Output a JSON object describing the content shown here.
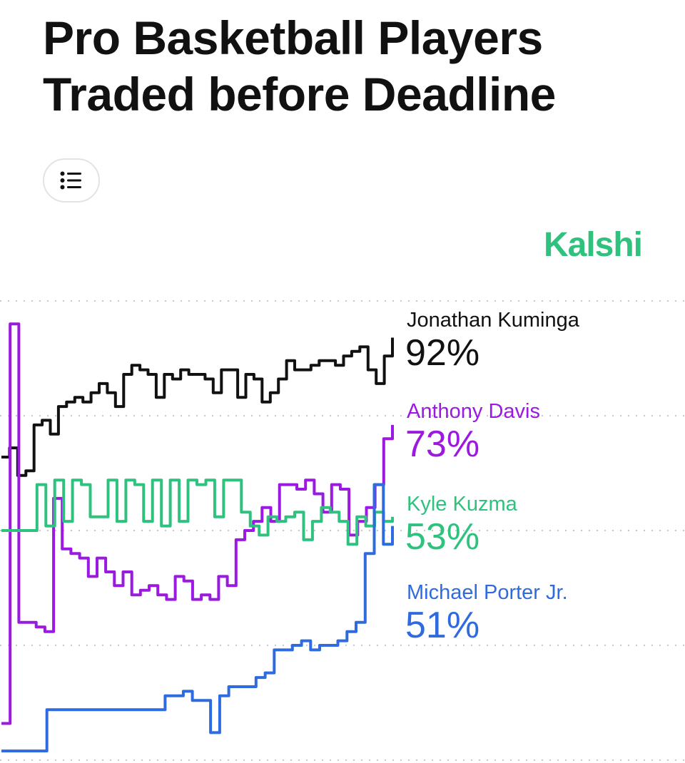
{
  "header": {
    "title_line1": "Pro Basketball Players",
    "title_line2": "Traded before Deadline",
    "menu_icon": "list-icon",
    "brand": "Kalshi",
    "brand_color": "#2ec27e"
  },
  "chart_data": {
    "type": "line",
    "title": "Pro Basketball Players Traded before Deadline",
    "ylim": [
      0,
      100
    ],
    "grid_values": [
      100,
      75,
      50,
      25,
      0
    ],
    "grid": "horizontal dotted",
    "legend": "right",
    "series": [
      {
        "name": "Jonathan Kuminga",
        "label": "92%",
        "color": "#111111",
        "values": [
          66,
          68,
          62,
          63,
          73,
          74,
          71,
          77,
          78,
          79,
          78,
          80,
          82,
          80,
          77,
          84,
          86,
          85,
          84,
          79,
          84,
          83,
          85,
          84,
          84,
          83,
          80,
          85,
          85,
          79,
          84,
          83,
          78,
          80,
          83,
          87,
          85,
          85,
          86,
          87,
          87,
          86,
          88,
          89,
          90,
          85,
          82,
          88,
          92
        ]
      },
      {
        "name": "Anthony Davis",
        "label": "73%",
        "color": "#9b19e0",
        "values": [
          8,
          95,
          30,
          30,
          29,
          28,
          57,
          46,
          45,
          44,
          40,
          44,
          41,
          38,
          41,
          36,
          37,
          38,
          36,
          35,
          40,
          39,
          35,
          36,
          35,
          40,
          38,
          48,
          50,
          52,
          55,
          52,
          60,
          60,
          59,
          61,
          58,
          54,
          60,
          59,
          49,
          52,
          55,
          60,
          70,
          73
        ]
      },
      {
        "name": "Kyle Kuzma",
        "label": "53%",
        "color": "#2ec27e",
        "values": [
          50,
          50,
          50,
          50,
          60,
          51,
          61,
          52,
          61,
          60,
          53,
          53,
          61,
          52,
          61,
          60,
          52,
          61,
          51,
          61,
          52,
          61,
          60,
          61,
          53,
          61,
          61,
          54,
          51,
          49,
          53,
          52,
          53,
          54,
          48,
          52,
          55,
          54,
          52,
          47,
          53,
          51,
          54,
          52,
          53
        ]
      },
      {
        "name": "Michael Porter Jr.",
        "label": "51%",
        "color": "#2f6bde",
        "values": [
          2,
          2,
          2,
          2,
          2,
          11,
          11,
          11,
          11,
          11,
          11,
          11,
          11,
          11,
          11,
          11,
          11,
          11,
          14,
          14,
          15,
          13,
          13,
          6,
          14,
          16,
          16,
          16,
          18,
          19,
          24,
          24,
          25,
          26,
          24,
          25,
          25,
          26,
          28,
          30,
          45,
          60,
          47,
          51
        ]
      }
    ]
  }
}
